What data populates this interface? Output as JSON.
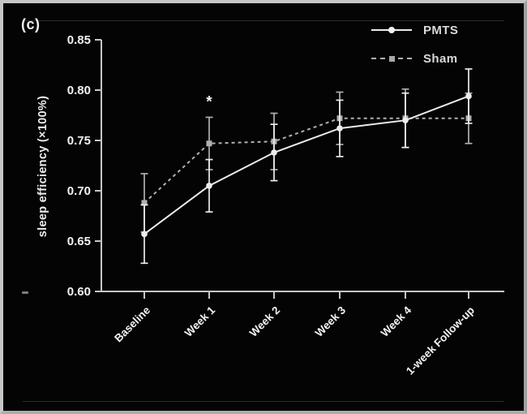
{
  "panel": {
    "label": "(c)"
  },
  "colors": {
    "background": "#040404",
    "frame_border": "#c6c6c6",
    "axis": "#c6c6c6",
    "text": "#f2f2f2",
    "pmts": "#ececec",
    "sham": "#b0b0b0"
  },
  "chart_data": {
    "type": "line",
    "title": "",
    "xlabel": "",
    "ylabel": "sleep efficiency (×100%)",
    "categories": [
      "Baseline",
      "Week 1",
      "Week 2",
      "Week 3",
      "Week 4",
      "1-week Follow-up"
    ],
    "ylim": [
      0.6,
      0.85
    ],
    "yticks": [
      0.6,
      0.65,
      0.7,
      0.75,
      0.8,
      0.85
    ],
    "grid": false,
    "legend_position": "top-right",
    "error_bars": true,
    "series": [
      {
        "name": "PMTS",
        "line": "solid",
        "marker": "circle",
        "color": "#ececec",
        "values": [
          0.657,
          0.705,
          0.738,
          0.762,
          0.77,
          0.794
        ],
        "errors": [
          0.029,
          0.026,
          0.028,
          0.028,
          0.027,
          0.027
        ]
      },
      {
        "name": "Sham",
        "line": "dashed",
        "marker": "square",
        "color": "#b0b0b0",
        "values": [
          0.688,
          0.747,
          0.749,
          0.772,
          0.772,
          0.772
        ],
        "errors": [
          0.029,
          0.026,
          0.028,
          0.026,
          0.029,
          0.025
        ]
      }
    ],
    "annotations": [
      {
        "text": "*",
        "category_index": 1,
        "value": 0.789
      }
    ]
  }
}
